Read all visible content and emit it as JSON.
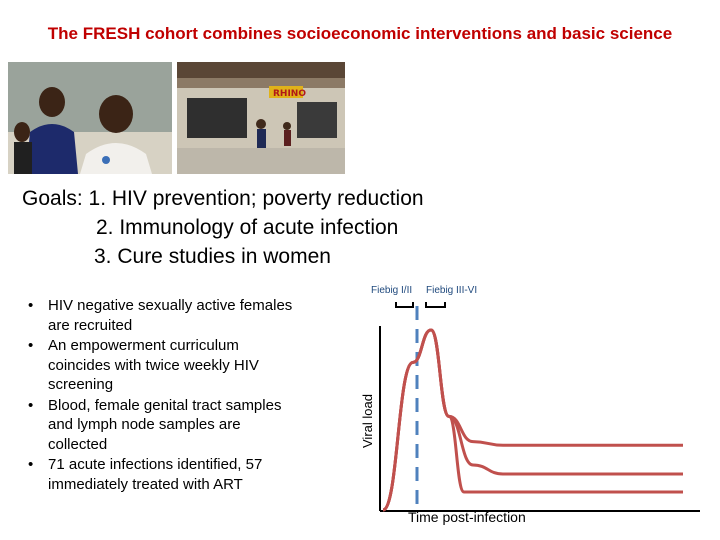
{
  "title": "The FRESH cohort combines socioeconomic interventions and basic science",
  "photos": [
    {
      "name": "women-portrait-photo"
    },
    {
      "name": "market-street-photo",
      "sign_text": "RHINO"
    }
  ],
  "goals": {
    "label": "Goals:",
    "items": [
      "1.  HIV prevention; poverty reduction",
      "2.  Immunology of acute infection",
      "3. Cure studies in women"
    ]
  },
  "bullets": {
    "marker": "•",
    "items": [
      "HIV negative sexually active females are recruited",
      "An empowerment curriculum coincides with twice weekly HIV screening",
      "Blood, female genital tract samples and lymph node samples are collected",
      "71 acute infections identified, 57 immediately treated with ART"
    ]
  },
  "colors": {
    "title": "#c00000",
    "curve": "#c0504d",
    "dashed": "#4f81bd",
    "axis": "#000000",
    "stage_label": "#1f497d"
  },
  "chart_data": {
    "type": "line",
    "title": "",
    "xlabel": "Time post-infection",
    "ylabel": "Viral load",
    "stage_labels": [
      "Fiebig I/II",
      "Fiebig III-VI"
    ],
    "grid": false,
    "legend": "none",
    "series": [
      {
        "x": [
          0,
          1,
          1.6,
          2.2,
          3,
          4,
          10
        ],
        "y": [
          0,
          0.82,
          1.0,
          0.52,
          0.38,
          0.36,
          0.36
        ]
      },
      {
        "x": [
          0,
          1,
          1.6,
          2.2,
          3,
          4,
          10
        ],
        "y": [
          0,
          0.82,
          1.0,
          0.52,
          0.25,
          0.2,
          0.2
        ]
      },
      {
        "x": [
          0,
          1,
          1.6,
          2.2,
          2.7,
          4,
          10
        ],
        "y": [
          0,
          0.82,
          1.0,
          0.52,
          0.1,
          0.1,
          0.1
        ]
      }
    ]
  }
}
